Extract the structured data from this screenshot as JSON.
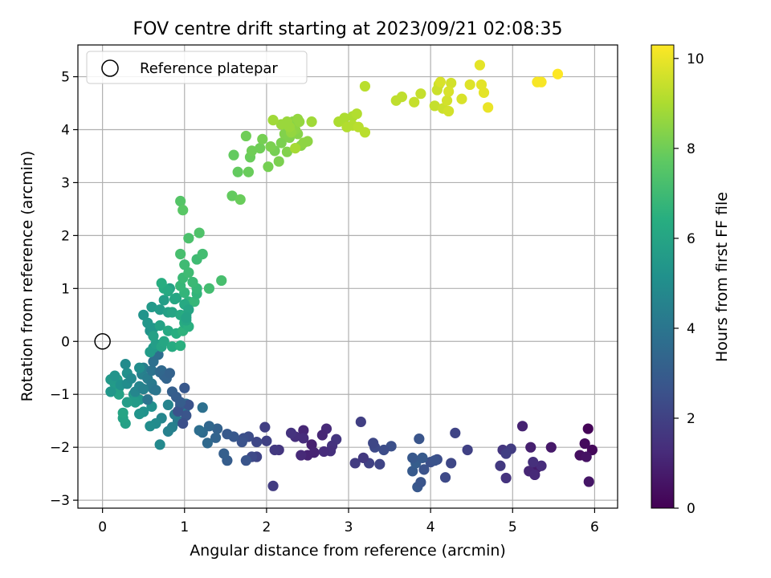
{
  "chart_data": {
    "type": "scatter",
    "title": "FOV centre drift starting at 2023/09/21 02:08:35",
    "xlabel": "Angular distance from reference (arcmin)",
    "ylabel": "Rotation from reference (arcmin)",
    "xlim": [
      -0.3,
      6.28
    ],
    "ylim": [
      -3.15,
      5.6
    ],
    "x_ticks": [
      0,
      1,
      2,
      3,
      4,
      5,
      6
    ],
    "y_ticks": [
      -3,
      -2,
      -1,
      0,
      1,
      2,
      3,
      4,
      5
    ],
    "grid": true,
    "legend": {
      "placement": "top-left",
      "entries": [
        "Reference platepar"
      ]
    },
    "reference_point": {
      "name": "Reference platepar",
      "x": 0,
      "y": 0,
      "marker": "open-circle"
    },
    "colorbar": {
      "label": "Hours from first FF file",
      "range": [
        0,
        10.3
      ],
      "ticks": [
        0,
        2,
        4,
        6,
        8,
        10
      ],
      "colormap": "viridis"
    },
    "points": [
      [
        5.92,
        -1.65,
        0.1
      ],
      [
        5.97,
        -2.05,
        0.2
      ],
      [
        5.88,
        -1.93,
        0.3
      ],
      [
        5.82,
        -2.15,
        0.4
      ],
      [
        5.9,
        -2.18,
        0.5
      ],
      [
        5.93,
        -2.65,
        0.6
      ],
      [
        5.47,
        -2.0,
        0.7
      ],
      [
        5.3,
        -2.38,
        0.8
      ],
      [
        5.22,
        -2.0,
        0.9
      ],
      [
        5.12,
        -1.6,
        1.0
      ],
      [
        5.2,
        -2.45,
        1.1
      ],
      [
        5.27,
        -2.52,
        1.2
      ],
      [
        5.35,
        -2.35,
        1.3
      ],
      [
        5.25,
        -2.28,
        1.4
      ],
      [
        4.92,
        -2.58,
        1.5
      ],
      [
        4.88,
        -2.05,
        1.6
      ],
      [
        4.85,
        -2.35,
        1.7
      ],
      [
        4.98,
        -2.03,
        1.8
      ],
      [
        4.92,
        -2.12,
        1.9
      ],
      [
        4.45,
        -2.05,
        2.0
      ],
      [
        4.3,
        -1.73,
        2.1
      ],
      [
        4.25,
        -2.3,
        2.2
      ],
      [
        4.18,
        -2.57,
        2.3
      ],
      [
        4.08,
        -2.23,
        2.4
      ],
      [
        4.0,
        -2.28,
        2.5
      ],
      [
        3.92,
        -2.42,
        2.6
      ],
      [
        3.86,
        -1.84,
        2.7
      ],
      [
        3.84,
        -2.75,
        2.8
      ],
      [
        3.78,
        -2.45,
        2.9
      ],
      [
        3.82,
        -2.3,
        3.0
      ],
      [
        3.9,
        -2.2,
        2.9
      ],
      [
        3.78,
        -2.2,
        2.8
      ],
      [
        3.88,
        -2.66,
        2.7
      ],
      [
        4.05,
        -2.25,
        2.6
      ],
      [
        3.52,
        -1.98,
        2.5
      ],
      [
        3.43,
        -2.05,
        2.4
      ],
      [
        3.32,
        -2.0,
        2.3
      ],
      [
        3.3,
        -1.92,
        2.2
      ],
      [
        3.38,
        -2.32,
        2.1
      ],
      [
        3.25,
        -2.3,
        2.0
      ],
      [
        3.15,
        -1.52,
        1.9
      ],
      [
        3.08,
        -2.3,
        1.8
      ],
      [
        3.18,
        -2.2,
        1.7
      ],
      [
        2.85,
        -1.85,
        1.6
      ],
      [
        2.8,
        -1.97,
        1.5
      ],
      [
        2.78,
        -2.07,
        1.4
      ],
      [
        2.7,
        -2.08,
        1.3
      ],
      [
        2.73,
        -1.65,
        1.2
      ],
      [
        2.68,
        -1.77,
        1.1
      ],
      [
        2.5,
        -2.15,
        1.0
      ],
      [
        2.55,
        -1.95,
        0.9
      ],
      [
        2.58,
        -2.1,
        1.0
      ],
      [
        2.45,
        -1.68,
        1.1
      ],
      [
        2.42,
        -2.15,
        1.2
      ],
      [
        2.45,
        -1.83,
        1.3
      ],
      [
        2.35,
        -1.8,
        1.4
      ],
      [
        2.3,
        -1.73,
        1.5
      ],
      [
        2.15,
        -2.05,
        1.6
      ],
      [
        2.1,
        -2.05,
        1.7
      ],
      [
        2.08,
        -2.73,
        1.8
      ],
      [
        1.98,
        -1.62,
        1.9
      ],
      [
        2.0,
        -1.88,
        2.0
      ],
      [
        1.88,
        -2.18,
        2.1
      ],
      [
        1.88,
        -1.9,
        2.2
      ],
      [
        1.82,
        -2.18,
        2.3
      ],
      [
        1.78,
        -1.8,
        2.4
      ],
      [
        1.72,
        -1.83,
        2.5
      ],
      [
        1.7,
        -1.9,
        2.6
      ],
      [
        1.75,
        -2.25,
        2.7
      ],
      [
        1.6,
        -1.8,
        2.8
      ],
      [
        1.52,
        -1.75,
        2.9
      ],
      [
        1.52,
        -2.25,
        3.0
      ],
      [
        1.48,
        -2.12,
        3.1
      ],
      [
        1.4,
        -1.65,
        3.2
      ],
      [
        1.38,
        -1.82,
        3.3
      ],
      [
        1.3,
        -1.6,
        3.4
      ],
      [
        1.28,
        -1.92,
        3.5
      ],
      [
        1.22,
        -1.72,
        3.6
      ],
      [
        1.18,
        -1.68,
        3.7
      ],
      [
        1.22,
        -1.25,
        3.8
      ],
      [
        1.02,
        -1.18,
        3.9
      ],
      [
        1.0,
        -1.3,
        4.0
      ],
      [
        0.95,
        -1.25,
        4.1
      ],
      [
        0.92,
        -1.5,
        4.2
      ],
      [
        0.88,
        -1.38,
        4.3
      ],
      [
        0.85,
        -1.62,
        4.4
      ],
      [
        0.8,
        -1.7,
        4.5
      ],
      [
        0.8,
        -1.2,
        4.6
      ],
      [
        0.72,
        -1.45,
        4.7
      ],
      [
        0.7,
        -1.95,
        4.8
      ],
      [
        0.65,
        -1.55,
        4.9
      ],
      [
        0.58,
        -1.6,
        5.0
      ],
      [
        0.6,
        -1.23,
        5.1
      ],
      [
        0.5,
        -1.33,
        5.2
      ],
      [
        0.45,
        -1.37,
        5.3
      ],
      [
        0.45,
        -1.1,
        5.4
      ],
      [
        0.38,
        -1.0,
        5.5
      ],
      [
        0.4,
        -1.15,
        5.6
      ],
      [
        0.3,
        -1.15,
        5.7
      ],
      [
        0.28,
        -1.55,
        5.8
      ],
      [
        0.25,
        -1.45,
        5.9
      ],
      [
        0.25,
        -1.35,
        6.0
      ],
      [
        0.2,
        -1.0,
        5.9
      ],
      [
        0.2,
        -0.87,
        5.8
      ],
      [
        0.18,
        -0.72,
        5.7
      ],
      [
        0.15,
        -0.8,
        5.6
      ],
      [
        0.1,
        -0.72,
        5.5
      ],
      [
        0.1,
        -0.95,
        5.4
      ],
      [
        0.15,
        -0.65,
        5.3
      ],
      [
        0.22,
        -0.82,
        5.2
      ],
      [
        0.3,
        -0.6,
        5.1
      ],
      [
        0.3,
        -0.8,
        5.0
      ],
      [
        0.28,
        -0.43,
        4.9
      ],
      [
        0.35,
        -0.7,
        4.8
      ],
      [
        0.4,
        -0.95,
        4.7
      ],
      [
        0.45,
        -0.85,
        4.6
      ],
      [
        0.48,
        -0.62,
        4.5
      ],
      [
        0.5,
        -0.5,
        4.4
      ],
      [
        0.55,
        -0.7,
        4.3
      ],
      [
        0.6,
        -0.8,
        4.2
      ],
      [
        0.62,
        -0.9,
        4.1
      ],
      [
        0.65,
        -0.92,
        4.0
      ],
      [
        0.6,
        -0.55,
        3.9
      ],
      [
        0.62,
        -0.38,
        3.8
      ],
      [
        0.68,
        -0.25,
        3.7
      ],
      [
        0.7,
        -0.58,
        3.6
      ],
      [
        0.72,
        -0.55,
        3.5
      ],
      [
        0.75,
        -0.65,
        3.4
      ],
      [
        0.78,
        -0.7,
        3.3
      ],
      [
        0.82,
        -0.6,
        3.2
      ],
      [
        0.85,
        -0.95,
        3.1
      ],
      [
        0.9,
        -1.05,
        3.0
      ],
      [
        0.95,
        -1.2,
        2.9
      ],
      [
        1.0,
        -0.88,
        2.8
      ],
      [
        1.02,
        -1.4,
        2.7
      ],
      [
        1.05,
        -1.2,
        2.6
      ],
      [
        0.98,
        -1.55,
        2.5
      ],
      [
        0.92,
        -1.32,
        2.6
      ],
      [
        0.95,
        -1.15,
        3.0
      ],
      [
        0.55,
        -1.1,
        4.0
      ],
      [
        0.5,
        -0.9,
        4.5
      ],
      [
        0.45,
        -0.5,
        5.0
      ],
      [
        0.58,
        0.2,
        5.3
      ],
      [
        0.62,
        0.25,
        5.4
      ],
      [
        0.62,
        -0.12,
        5.5
      ],
      [
        0.58,
        -0.2,
        5.6
      ],
      [
        0.65,
        -0.05,
        5.7
      ],
      [
        0.62,
        0.1,
        5.8
      ],
      [
        0.7,
        0.3,
        5.9
      ],
      [
        0.72,
        -0.1,
        6.0
      ],
      [
        0.75,
        0.0,
        6.1
      ],
      [
        0.8,
        0.2,
        6.2
      ],
      [
        0.85,
        -0.1,
        6.3
      ],
      [
        0.9,
        0.15,
        6.4
      ],
      [
        0.95,
        -0.08,
        6.5
      ],
      [
        0.98,
        0.2,
        6.6
      ],
      [
        0.5,
        0.5,
        5.3
      ],
      [
        0.55,
        0.35,
        5.4
      ],
      [
        0.6,
        0.65,
        5.5
      ],
      [
        0.7,
        0.6,
        5.6
      ],
      [
        0.75,
        0.78,
        5.7
      ],
      [
        0.8,
        0.55,
        5.8
      ],
      [
        0.82,
        1.0,
        5.9
      ],
      [
        0.85,
        0.55,
        6.0
      ],
      [
        0.9,
        0.82,
        6.1
      ],
      [
        0.95,
        0.5,
        6.2
      ],
      [
        1.0,
        0.35,
        6.3
      ],
      [
        1.02,
        0.5,
        6.4
      ],
      [
        1.05,
        0.28,
        6.5
      ],
      [
        1.05,
        0.75,
        6.6
      ],
      [
        1.0,
        0.92,
        6.7
      ],
      [
        0.95,
        1.05,
        6.8
      ],
      [
        0.98,
        1.2,
        6.9
      ],
      [
        1.0,
        1.45,
        7.0
      ],
      [
        1.05,
        1.3,
        7.0
      ],
      [
        1.12,
        0.75,
        6.8
      ],
      [
        1.15,
        0.9,
        6.7
      ],
      [
        1.15,
        1.0,
        6.8
      ],
      [
        1.1,
        1.12,
        6.9
      ],
      [
        1.15,
        1.55,
        7.0
      ],
      [
        1.22,
        1.65,
        7.1
      ],
      [
        1.3,
        1.0,
        7.1
      ],
      [
        1.45,
        1.15,
        7.2
      ],
      [
        0.95,
        1.65,
        7.2
      ],
      [
        1.05,
        1.95,
        7.3
      ],
      [
        1.18,
        2.05,
        7.4
      ],
      [
        0.95,
        2.65,
        7.5
      ],
      [
        0.98,
        2.48,
        7.6
      ],
      [
        0.75,
        1.0,
        6.3
      ],
      [
        0.72,
        1.1,
        6.4
      ],
      [
        0.8,
        0.95,
        6.2
      ],
      [
        0.88,
        0.8,
        6.1
      ],
      [
        1.0,
        0.7,
        6.2
      ],
      [
        1.05,
        0.6,
        6.0
      ],
      [
        1.02,
        0.4,
        6.1
      ],
      [
        1.02,
        0.45,
        5.9
      ],
      [
        1.58,
        2.75,
        7.8
      ],
      [
        1.68,
        2.68,
        7.9
      ],
      [
        1.6,
        3.52,
        7.8
      ],
      [
        1.65,
        3.2,
        7.8
      ],
      [
        1.78,
        3.2,
        7.9
      ],
      [
        1.8,
        3.48,
        7.9
      ],
      [
        1.75,
        3.88,
        8.0
      ],
      [
        1.82,
        3.6,
        8.0
      ],
      [
        1.92,
        3.65,
        8.0
      ],
      [
        1.95,
        3.82,
        8.1
      ],
      [
        2.02,
        3.3,
        8.1
      ],
      [
        2.1,
        3.6,
        8.1
      ],
      [
        2.05,
        3.68,
        8.2
      ],
      [
        2.15,
        3.4,
        8.2
      ],
      [
        2.18,
        3.75,
        8.2
      ],
      [
        2.22,
        3.92,
        8.3
      ],
      [
        2.25,
        3.58,
        8.3
      ],
      [
        2.28,
        3.85,
        8.3
      ],
      [
        2.32,
        4.15,
        8.4
      ],
      [
        2.38,
        3.92,
        8.4
      ],
      [
        2.42,
        3.7,
        8.4
      ],
      [
        2.45,
        3.75,
        8.5
      ],
      [
        2.5,
        3.78,
        8.5
      ],
      [
        2.35,
        4.0,
        8.5
      ],
      [
        2.38,
        4.2,
        8.6
      ],
      [
        2.4,
        4.15,
        8.6
      ],
      [
        2.3,
        3.95,
        8.6
      ],
      [
        2.28,
        4.05,
        8.7
      ],
      [
        2.18,
        4.1,
        8.7
      ],
      [
        2.25,
        4.15,
        8.7
      ],
      [
        2.55,
        4.15,
        8.8
      ],
      [
        2.08,
        4.18,
        8.8
      ],
      [
        2.35,
        3.65,
        8.9
      ],
      [
        2.88,
        4.15,
        9.0
      ],
      [
        2.95,
        4.22,
        9.0
      ],
      [
        3.05,
        4.25,
        9.0
      ],
      [
        3.1,
        4.3,
        9.1
      ],
      [
        2.98,
        4.05,
        9.1
      ],
      [
        3.05,
        4.08,
        9.1
      ],
      [
        3.12,
        4.05,
        9.2
      ],
      [
        3.2,
        3.95,
        9.2
      ],
      [
        3.2,
        4.82,
        9.2
      ],
      [
        3.58,
        4.55,
        9.3
      ],
      [
        3.65,
        4.62,
        9.3
      ],
      [
        3.8,
        4.52,
        9.4
      ],
      [
        3.88,
        4.68,
        9.4
      ],
      [
        4.05,
        4.45,
        9.4
      ],
      [
        4.08,
        4.75,
        9.5
      ],
      [
        4.1,
        4.85,
        9.5
      ],
      [
        4.15,
        4.4,
        9.5
      ],
      [
        4.2,
        4.55,
        9.6
      ],
      [
        4.22,
        4.35,
        9.6
      ],
      [
        4.25,
        4.88,
        9.6
      ],
      [
        4.22,
        4.72,
        9.7
      ],
      [
        4.12,
        4.9,
        9.7
      ],
      [
        4.38,
        4.58,
        9.7
      ],
      [
        4.48,
        4.85,
        9.8
      ],
      [
        4.6,
        5.22,
        9.9
      ],
      [
        4.62,
        4.85,
        9.9
      ],
      [
        4.65,
        4.7,
        9.9
      ],
      [
        4.7,
        4.42,
        10.0
      ],
      [
        5.3,
        4.9,
        10.2
      ],
      [
        5.35,
        4.9,
        10.2
      ],
      [
        5.55,
        5.05,
        10.3
      ]
    ]
  }
}
